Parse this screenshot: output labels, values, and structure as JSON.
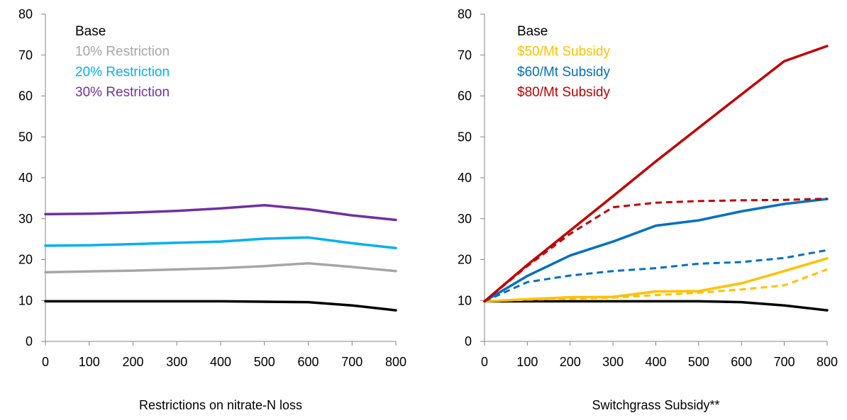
{
  "chart_data": [
    {
      "type": "line",
      "title": "",
      "xlabel": "Restrictions on nitrate-N loss",
      "ylabel": "",
      "xlim": [
        0,
        800
      ],
      "ylim": [
        0,
        80
      ],
      "x_ticks": [
        "0",
        "100",
        "200",
        "300",
        "400",
        "500",
        "600",
        "700",
        "800"
      ],
      "y_ticks": [
        "0",
        "10",
        "20",
        "30",
        "40",
        "50",
        "60",
        "70",
        "80"
      ],
      "grid": false,
      "legend_position": "top-left",
      "x": [
        0,
        100,
        200,
        300,
        400,
        500,
        600,
        700,
        800
      ],
      "series": [
        {
          "name": "Base",
          "color": "#000000",
          "dash": "solid",
          "values": [
            9.8,
            9.8,
            9.8,
            9.8,
            9.8,
            9.7,
            9.6,
            8.8,
            7.6
          ]
        },
        {
          "name": "10% Restriction",
          "color": "#a6a6a6",
          "dash": "solid",
          "values": [
            16.9,
            17.1,
            17.3,
            17.6,
            17.9,
            18.4,
            19.1,
            18.2,
            17.2
          ]
        },
        {
          "name": "20% Restriction",
          "color": "#00b0f0",
          "dash": "solid",
          "values": [
            23.4,
            23.5,
            23.8,
            24.1,
            24.4,
            25.1,
            25.4,
            24.0,
            22.8
          ]
        },
        {
          "name": "30% Restriction",
          "color": "#7030a0",
          "dash": "solid",
          "values": [
            31.1,
            31.2,
            31.5,
            31.9,
            32.5,
            33.3,
            32.3,
            30.8,
            29.7
          ]
        }
      ]
    },
    {
      "type": "line",
      "title": "",
      "xlabel": "Switchgrass Subsidy**",
      "ylabel": "",
      "xlim": [
        0,
        800
      ],
      "ylim": [
        0,
        80
      ],
      "x_ticks": [
        "0",
        "100",
        "200",
        "300",
        "400",
        "500",
        "600",
        "700",
        "800"
      ],
      "y_ticks": [
        "0",
        "10",
        "20",
        "30",
        "40",
        "50",
        "60",
        "70",
        "80"
      ],
      "grid": false,
      "legend_position": "top-left",
      "x": [
        0,
        100,
        200,
        300,
        400,
        500,
        600,
        700,
        800
      ],
      "series": [
        {
          "name": "Base",
          "color": "#000000",
          "dash": "solid",
          "values": [
            9.8,
            9.8,
            9.8,
            9.8,
            9.8,
            9.8,
            9.6,
            8.8,
            7.6
          ]
        },
        {
          "name": "$50/Mt Subsidy",
          "color": "#ffc000",
          "dash": "solid",
          "values": [
            9.8,
            10.3,
            10.8,
            10.9,
            12.2,
            12.3,
            14.2,
            17.2,
            20.3
          ]
        },
        {
          "name": "",
          "color": "#ffc000",
          "dash": "dashed",
          "values": [
            9.8,
            10.2,
            10.4,
            10.7,
            11.3,
            11.9,
            12.7,
            13.7,
            17.6
          ]
        },
        {
          "name": "$60/Mt Subsidy",
          "color": "#0070c0",
          "dash": "solid",
          "values": [
            9.8,
            16.0,
            21.0,
            24.4,
            28.3,
            29.6,
            31.8,
            33.6,
            34.8
          ]
        },
        {
          "name": "",
          "color": "#0070c0",
          "dash": "dashed",
          "values": [
            9.8,
            14.5,
            16.1,
            17.2,
            17.9,
            19.0,
            19.4,
            20.4,
            22.3
          ]
        },
        {
          "name": "$80/Mt Subsidy",
          "color": "#c00000",
          "dash": "solid",
          "values": [
            9.8,
            18.7,
            27.1,
            35.5,
            44.0,
            52.2,
            60.4,
            68.5,
            72.2
          ]
        },
        {
          "name": "",
          "color": "#c00000",
          "dash": "dashed",
          "values": [
            9.8,
            18.4,
            26.3,
            32.8,
            33.9,
            34.3,
            34.5,
            34.6,
            34.9
          ]
        }
      ]
    }
  ]
}
